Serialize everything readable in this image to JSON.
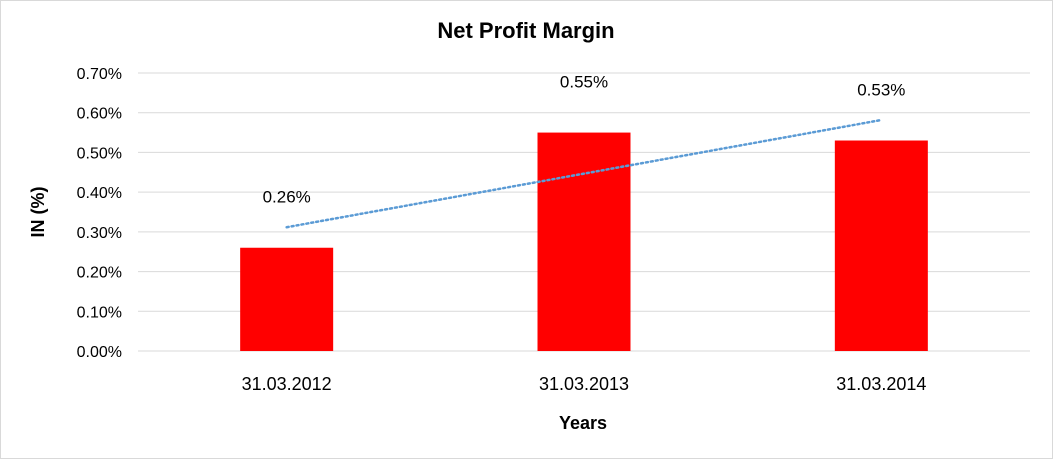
{
  "chart_data": {
    "type": "bar",
    "title": "Net Profit Margin",
    "xlabel": "Years",
    "ylabel": "IN (%)",
    "categories": [
      "31.03.2012",
      "31.03.2013",
      "31.03.2014"
    ],
    "values": [
      0.26,
      0.55,
      0.53
    ],
    "data_labels": [
      "0.26%",
      "0.55%",
      "0.53%"
    ],
    "ylim": [
      0,
      0.7
    ],
    "yticks": [
      "0.00%",
      "0.10%",
      "0.20%",
      "0.30%",
      "0.40%",
      "0.50%",
      "0.60%",
      "0.70%"
    ],
    "grid": true,
    "legend": "none",
    "trendline": {
      "type": "linear",
      "style": "dotted"
    },
    "colors": {
      "bar": "#ff0000",
      "trendline": "#5b9bd5",
      "grid": "#d9d9d9"
    }
  }
}
